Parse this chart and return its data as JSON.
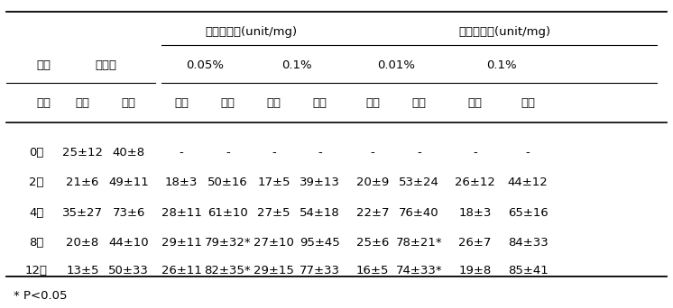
{
  "rows": [
    [
      "0주",
      "25±12",
      "40±8",
      "-",
      "-",
      "-",
      "-",
      "-",
      "-",
      "-",
      "-"
    ],
    [
      "2주",
      "21±6",
      "49±11",
      "18±3",
      "50±16",
      "17±5",
      "39±13",
      "20±9",
      "53±24",
      "26±12",
      "44±12"
    ],
    [
      "4주",
      "35±27",
      "73±6",
      "28±11",
      "61±10",
      "27±5",
      "54±18",
      "22±7",
      "76±40",
      "18±3",
      "65±16"
    ],
    [
      "8주",
      "20±8",
      "44±10",
      "29±11",
      "79±32*",
      "27±10",
      "95±45",
      "25±6",
      "78±21*",
      "26±7",
      "84±33"
    ],
    [
      "12주",
      "13±5",
      "50±33",
      "26±11",
      "82±35*",
      "29±15",
      "77±33",
      "16±5",
      "74±33*",
      "19±8",
      "85±41"
    ]
  ],
  "header3": [
    "비장",
    "신장",
    "비장",
    "신장",
    "비장",
    "신장",
    "비장",
    "신장",
    "비장",
    "신장"
  ],
  "tuyeo": "투여",
  "gigan": "기간",
  "daejogu": "대조구",
  "gosam": "고삼생약재(unit/mg)",
  "bokham": "복합생약재(unit/mg)",
  "pct005": "0.05%",
  "pct01a": "0.1%",
  "pct001": "0.01%",
  "pct01b": "0.1%",
  "footnote": "* P<0.05",
  "line_color": "#000000",
  "text_color": "#000000",
  "bg_color": "#ffffff",
  "font_size": 9.5
}
